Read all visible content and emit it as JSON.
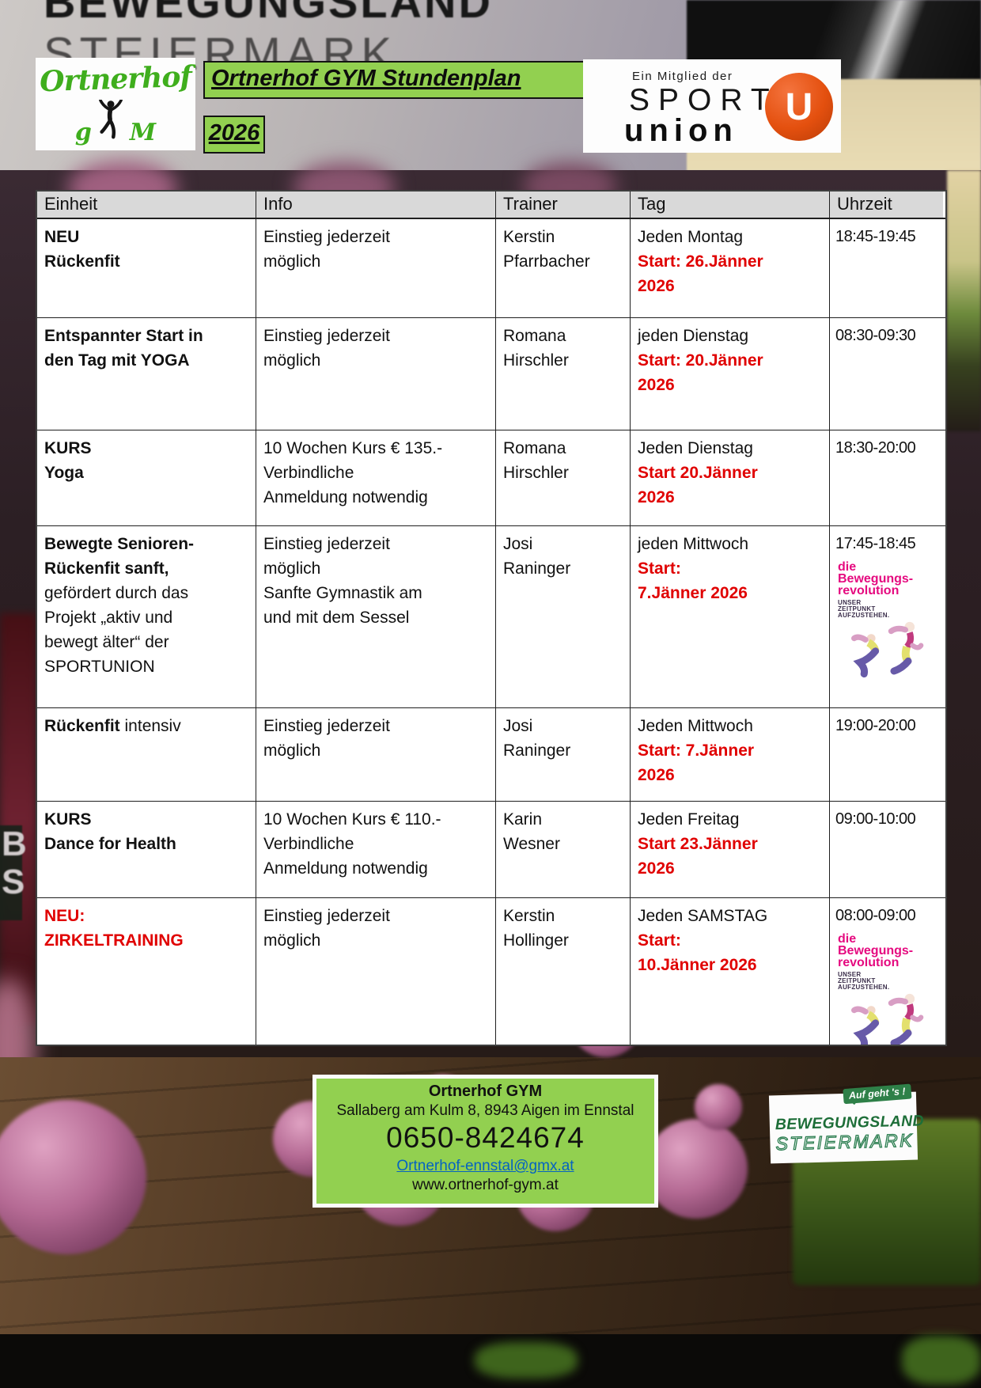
{
  "background": {
    "wall_text_line1": "BEWEGUNGSLAND",
    "wall_text_line2": "STEIERMARK",
    "side_letters": "B S"
  },
  "header": {
    "brand_script": "Ortnerhof",
    "brand_g": "g",
    "brand_m": "M",
    "title": "Ortnerhof GYM Stundenplan",
    "year": "2026",
    "sportunion": {
      "tagline": "Ein Mitglied der",
      "line1": "SPORT",
      "line2": "union",
      "badge_letter": "U"
    }
  },
  "table": {
    "columns": [
      "Einheit",
      "Info",
      "Trainer",
      "Tag",
      "Uhrzeit"
    ],
    "rows": [
      {
        "einheit": [
          [
            {
              "t": "NEU",
              "b": 1
            }
          ],
          [
            {
              "t": "Rückenfit",
              "b": 1
            }
          ]
        ],
        "info": [
          [
            {
              "t": "Einstieg jederzeit"
            }
          ],
          [
            {
              "t": "möglich"
            }
          ]
        ],
        "trainer": [
          [
            {
              "t": "Kerstin"
            }
          ],
          [
            {
              "t": "Pfarrbacher"
            }
          ]
        ],
        "tag": [
          [
            {
              "t": "Jeden Montag"
            }
          ],
          [
            {
              "t": "Start: 26.Jänner",
              "b": 1,
              "r": 1
            }
          ],
          [
            {
              "t": "2026",
              "b": 1,
              "r": 1
            }
          ]
        ],
        "uhrzeit": [
          [
            {
              "t": "18:45-19:45"
            }
          ]
        ],
        "revolution_logo": false
      },
      {
        "einheit": [
          [
            {
              "t": "Entspannter Start in",
              "b": 1
            }
          ],
          [
            {
              "t": "den Tag mit YOGA",
              "b": 1
            }
          ]
        ],
        "info": [
          [
            {
              "t": "Einstieg jederzeit"
            }
          ],
          [
            {
              "t": "möglich"
            }
          ]
        ],
        "trainer": [
          [
            {
              "t": "Romana"
            }
          ],
          [
            {
              "t": "Hirschler"
            }
          ]
        ],
        "tag": [
          [
            {
              "t": "jeden Dienstag"
            }
          ],
          [
            {
              "t": "Start: 20.Jänner",
              "b": 1,
              "r": 1
            }
          ],
          [
            {
              "t": "2026",
              "b": 1,
              "r": 1
            }
          ]
        ],
        "uhrzeit": [
          [
            {
              "t": "08:30-09:30"
            }
          ]
        ],
        "revolution_logo": false
      },
      {
        "einheit": [
          [
            {
              "t": "KURS",
              "b": 1
            }
          ],
          [
            {
              "t": "Yoga",
              "b": 1
            }
          ]
        ],
        "info": [
          [
            {
              "t": "10 Wochen Kurs € 135.-"
            }
          ],
          [
            {
              "t": "Verbindliche"
            }
          ],
          [
            {
              "t": "Anmeldung notwendig"
            }
          ]
        ],
        "trainer": [
          [
            {
              "t": "Romana"
            }
          ],
          [
            {
              "t": "Hirschler"
            }
          ]
        ],
        "tag": [
          [
            {
              "t": "Jeden Dienstag"
            }
          ],
          [
            {
              "t": "Start 20.Jänner",
              "b": 1,
              "r": 1
            }
          ],
          [
            {
              "t": "2026",
              "b": 1,
              "r": 1
            }
          ]
        ],
        "uhrzeit": [
          [
            {
              "t": "18:30-20:00"
            }
          ]
        ],
        "revolution_logo": false
      },
      {
        "einheit": [
          [
            {
              "t": "Bewegte Senioren-",
              "b": 1
            }
          ],
          [
            {
              "t": "Rückenfit sanft,",
              "b": 1
            }
          ],
          [
            {
              "t": "gefördert durch das"
            }
          ],
          [
            {
              "t": "Projekt „aktiv und"
            }
          ],
          [
            {
              "t": "bewegt älter“ der"
            }
          ],
          [
            {
              "t": "SPORTUNION"
            }
          ]
        ],
        "info": [
          [
            {
              "t": "Einstieg jederzeit"
            }
          ],
          [
            {
              "t": "möglich"
            }
          ],
          [
            {
              "t": "Sanfte Gymnastik am"
            }
          ],
          [
            {
              "t": "und mit dem Sessel"
            }
          ]
        ],
        "trainer": [
          [
            {
              "t": "Josi"
            }
          ],
          [
            {
              "t": "Raninger"
            }
          ]
        ],
        "tag": [
          [
            {
              "t": "jeden Mittwoch"
            }
          ],
          [
            {
              "t": "Start:",
              "b": 1,
              "r": 1
            }
          ],
          [
            {
              "t": "7.Jänner 2026",
              "b": 1,
              "r": 1
            }
          ]
        ],
        "uhrzeit": [
          [
            {
              "t": "17:45-18:45"
            }
          ]
        ],
        "revolution_logo": true
      },
      {
        "einheit": [
          [
            {
              "t": "Rückenfit ",
              "b": 1
            },
            {
              "t": "intensiv"
            }
          ]
        ],
        "info": [
          [
            {
              "t": "Einstieg jederzeit"
            }
          ],
          [
            {
              "t": "möglich"
            }
          ]
        ],
        "trainer": [
          [
            {
              "t": "Josi"
            }
          ],
          [
            {
              "t": "Raninger"
            }
          ]
        ],
        "tag": [
          [
            {
              "t": "Jeden Mittwoch"
            }
          ],
          [
            {
              "t": "Start: 7.Jänner",
              "b": 1,
              "r": 1
            }
          ],
          [
            {
              "t": "2026",
              "b": 1,
              "r": 1
            }
          ]
        ],
        "uhrzeit": [
          [
            {
              "t": "19:00-20:00"
            }
          ]
        ],
        "revolution_logo": false
      },
      {
        "einheit": [
          [
            {
              "t": "KURS",
              "b": 1
            }
          ],
          [
            {
              "t": "Dance for Health",
              "b": 1
            }
          ]
        ],
        "info": [
          [
            {
              "t": "10 Wochen Kurs € 110.-"
            }
          ],
          [
            {
              "t": "Verbindliche"
            }
          ],
          [
            {
              "t": "Anmeldung notwendig"
            }
          ]
        ],
        "trainer": [
          [
            {
              "t": "Karin"
            }
          ],
          [
            {
              "t": "Wesner"
            }
          ]
        ],
        "tag": [
          [
            {
              "t": "Jeden Freitag"
            }
          ],
          [
            {
              "t": "Start 23.Jänner",
              "b": 1,
              "r": 1
            }
          ],
          [
            {
              "t": "2026",
              "b": 1,
              "r": 1
            }
          ]
        ],
        "uhrzeit": [
          [
            {
              "t": "09:00-10:00"
            }
          ]
        ],
        "revolution_logo": false
      },
      {
        "einheit": [
          [
            {
              "t": "NEU:",
              "b": 1,
              "r": 1
            }
          ],
          [
            {
              "t": "ZIRKELTRAINING",
              "b": 1,
              "r": 1
            }
          ]
        ],
        "info": [
          [
            {
              "t": "Einstieg jederzeit"
            }
          ],
          [
            {
              "t": "möglich"
            }
          ]
        ],
        "trainer": [
          [
            {
              "t": "Kerstin"
            }
          ],
          [
            {
              "t": "Hollinger"
            }
          ]
        ],
        "tag": [
          [
            {
              "t": "Jeden SAMSTAG"
            }
          ],
          [
            {
              "t": "Start:",
              "b": 1,
              "r": 1
            }
          ],
          [
            {
              "t": "10.Jänner 2026",
              "b": 1,
              "r": 1
            }
          ]
        ],
        "uhrzeit": [
          [
            {
              "t": "08:00-09:00"
            }
          ]
        ],
        "revolution_logo": true
      }
    ]
  },
  "revolution_logo": {
    "line1": "die",
    "line2": "Bewegungs-",
    "line3": "revolution",
    "sub_lines": [
      "UNSER",
      "ZEITPUNKT",
      "AUFZUSTEHEN."
    ]
  },
  "footer": {
    "gym_name": "Ortnerhof GYM",
    "address": "Sallaberg am Kulm 8, 8943 Aigen im Ennstal",
    "phone": "0650-8424674",
    "email": "Ortnerhof-ennstal@gmx.at",
    "website": "www.ortnerhof-gym.at"
  },
  "footer_logo": {
    "bubble": "Auf geht 's !",
    "line1": "BEWEGUNGSLAND",
    "line2": "STEIERMARK"
  },
  "colors": {
    "accent_green": "#92d050",
    "alert_red": "#e00000",
    "header_gray": "#d9d9d9",
    "revolution_pink": "#e5097f",
    "union_orange": "#e4500f",
    "steiermark_green": "#1d6e38",
    "link_blue": "#0563c1"
  }
}
